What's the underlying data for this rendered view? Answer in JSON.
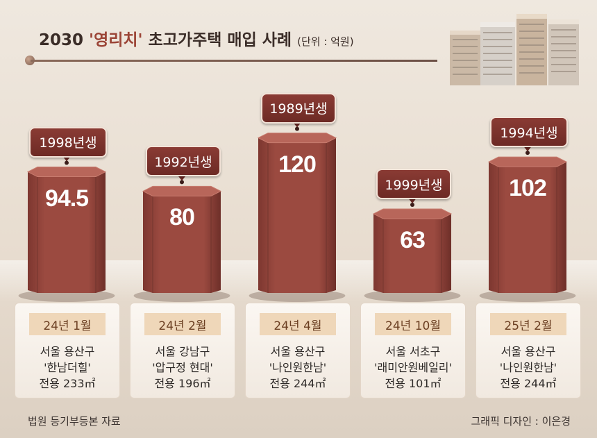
{
  "header": {
    "title_prefix": "2030 ",
    "title_accent": "'영리치'",
    "title_rest": " 초고가주택 매입 사례",
    "unit_label": "(단위 : 억원)"
  },
  "chart_data": {
    "type": "bar",
    "title": "2030 '영리치' 초고가주택 매입 사례",
    "unit": "억원",
    "categories": [
      "'한남더힐'",
      "'압구정 현대'",
      "'나인원한남'",
      "'래미안원베일리'",
      "'나인원한남'"
    ],
    "values": [
      94.5,
      80,
      120,
      63,
      102
    ],
    "value_labels": [
      "94.5",
      "80",
      "120",
      "63",
      "102"
    ],
    "series": [
      {
        "values": [
          94.5,
          80,
          120,
          63,
          102
        ]
      }
    ],
    "buyers": [
      "1998년생",
      "1992년생",
      "1989년생",
      "1999년생",
      "1994년생"
    ],
    "dates": [
      "24년 1월",
      "24년 2월",
      "24년 4월",
      "24년 10월",
      "25년 2월"
    ],
    "locations": [
      "서울 용산구",
      "서울 강남구",
      "서울 용산구",
      "서울 서초구",
      "서울 용산구"
    ],
    "areas": [
      "전용 233㎡",
      "전용 196㎡",
      "전용 244㎡",
      "전용 101㎡",
      "전용 244㎡"
    ],
    "grid": false,
    "legend": "none"
  },
  "colors": {
    "bar_front": "#9b4a40",
    "bar_top": "#b8665a",
    "tag_bg": "#7a312c",
    "date_bg": "#efd7b9"
  },
  "footer": {
    "source": "법원 등기부등본 자료",
    "credit": "그래픽 디자인 : 이은경"
  }
}
